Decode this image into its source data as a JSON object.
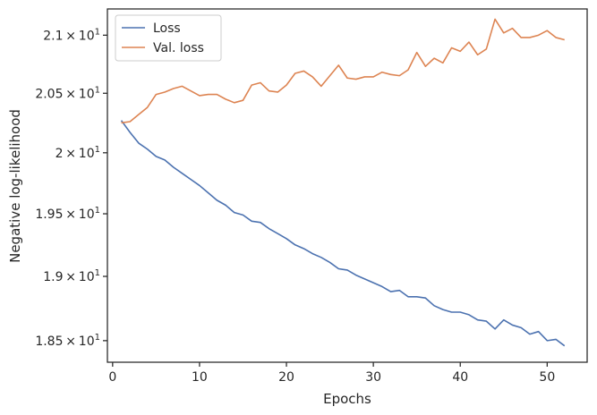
{
  "chart_data": {
    "type": "line",
    "xlabel": "Epochs",
    "ylabel": "Negative log-likelihood",
    "xlim": [
      -0.6,
      54.6
    ],
    "ylim": [
      18.335,
      21.23
    ],
    "yscale": "log",
    "x_ticks": [
      {
        "value": 0,
        "label": "0"
      },
      {
        "value": 10,
        "label": "10"
      },
      {
        "value": 20,
        "label": "20"
      },
      {
        "value": 30,
        "label": "30"
      },
      {
        "value": 40,
        "label": "40"
      },
      {
        "value": 50,
        "label": "50"
      }
    ],
    "y_ticks": [
      {
        "value": 18.5,
        "mantissa": "1.85",
        "exponent": "1"
      },
      {
        "value": 19.0,
        "mantissa": "1.9",
        "exponent": "1"
      },
      {
        "value": 19.5,
        "mantissa": "1.95",
        "exponent": "1"
      },
      {
        "value": 20.0,
        "mantissa": "2",
        "exponent": "1"
      },
      {
        "value": 20.5,
        "mantissa": "2.05",
        "exponent": "1"
      },
      {
        "value": 21.0,
        "mantissa": "2.1",
        "exponent": "1"
      }
    ],
    "legend_position": "top-left",
    "grid": false,
    "x": [
      1,
      2,
      3,
      4,
      5,
      6,
      7,
      8,
      9,
      10,
      11,
      12,
      13,
      14,
      15,
      16,
      17,
      18,
      19,
      20,
      21,
      22,
      23,
      24,
      25,
      26,
      27,
      28,
      29,
      30,
      31,
      32,
      33,
      34,
      35,
      36,
      37,
      38,
      39,
      40,
      41,
      42,
      43,
      44,
      45,
      46,
      47,
      48,
      49,
      50,
      51,
      52
    ],
    "series": [
      {
        "name": "Loss",
        "color": "#4c72b0",
        "values": [
          20.27,
          20.17,
          20.08,
          20.03,
          19.97,
          19.94,
          19.88,
          19.83,
          19.78,
          19.73,
          19.67,
          19.61,
          19.57,
          19.51,
          19.49,
          19.44,
          19.43,
          19.38,
          19.34,
          19.3,
          19.25,
          19.22,
          19.18,
          19.15,
          19.11,
          19.06,
          19.05,
          19.01,
          18.98,
          18.95,
          18.92,
          18.88,
          18.89,
          18.84,
          18.84,
          18.83,
          18.77,
          18.74,
          18.72,
          18.72,
          18.7,
          18.66,
          18.65,
          18.59,
          18.66,
          18.62,
          18.6,
          18.55,
          18.57,
          18.5,
          18.51,
          18.46
        ]
      },
      {
        "name": "Val. loss",
        "color": "#dd8452",
        "values": [
          20.25,
          20.26,
          20.32,
          20.38,
          20.49,
          20.51,
          20.54,
          20.56,
          20.52,
          20.48,
          20.49,
          20.49,
          20.45,
          20.42,
          20.44,
          20.57,
          20.59,
          20.52,
          20.51,
          20.57,
          20.67,
          20.69,
          20.64,
          20.56,
          20.65,
          20.74,
          20.63,
          20.62,
          20.64,
          20.64,
          20.68,
          20.66,
          20.65,
          20.7,
          20.85,
          20.73,
          20.8,
          20.76,
          20.89,
          20.86,
          20.94,
          20.83,
          20.88,
          21.14,
          21.02,
          21.06,
          20.98,
          20.98,
          21.0,
          21.04,
          20.98,
          20.96
        ]
      }
    ]
  }
}
